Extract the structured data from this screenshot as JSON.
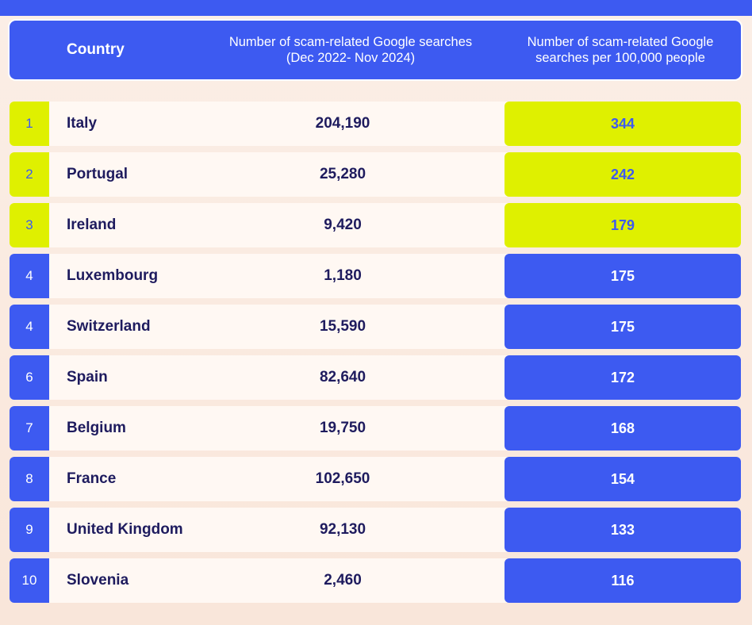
{
  "colors": {
    "blue": "#3d5af1",
    "lime": "#dff000",
    "row_bg": "#fff8f3",
    "dark_text": "#1e1b5e"
  },
  "header": {
    "country": "Country",
    "searches": "Number of scam-related Google searches (Dec 2022- Nov 2024)",
    "per_100k": "Number of scam-related Google searches per 100,000 people"
  },
  "chart_data": {
    "type": "table",
    "columns": [
      "",
      "Country",
      "Number of scam-related Google searches (Dec 2022- Nov 2024)",
      "Number of scam-related Google searches per 100,000 people"
    ],
    "rows": [
      {
        "rank": "1",
        "country": "Italy",
        "searches": "204,190",
        "per_100k": "344",
        "highlight": true
      },
      {
        "rank": "2",
        "country": "Portugal",
        "searches": "25,280",
        "per_100k": "242",
        "highlight": true
      },
      {
        "rank": "3",
        "country": "Ireland",
        "searches": "9,420",
        "per_100k": "179",
        "highlight": true
      },
      {
        "rank": "4",
        "country": "Luxembourg",
        "searches": "1,180",
        "per_100k": "175",
        "highlight": false
      },
      {
        "rank": "4",
        "country": "Switzerland",
        "searches": "15,590",
        "per_100k": "175",
        "highlight": false
      },
      {
        "rank": "6",
        "country": "Spain",
        "searches": "82,640",
        "per_100k": "172",
        "highlight": false
      },
      {
        "rank": "7",
        "country": "Belgium",
        "searches": "19,750",
        "per_100k": "168",
        "highlight": false
      },
      {
        "rank": "8",
        "country": "France",
        "searches": "102,650",
        "per_100k": "154",
        "highlight": false
      },
      {
        "rank": "9",
        "country": "United Kingdom",
        "searches": "92,130",
        "per_100k": "133",
        "highlight": false
      },
      {
        "rank": "10",
        "country": "Slovenia",
        "searches": "2,460",
        "per_100k": "116",
        "highlight": false
      }
    ]
  }
}
